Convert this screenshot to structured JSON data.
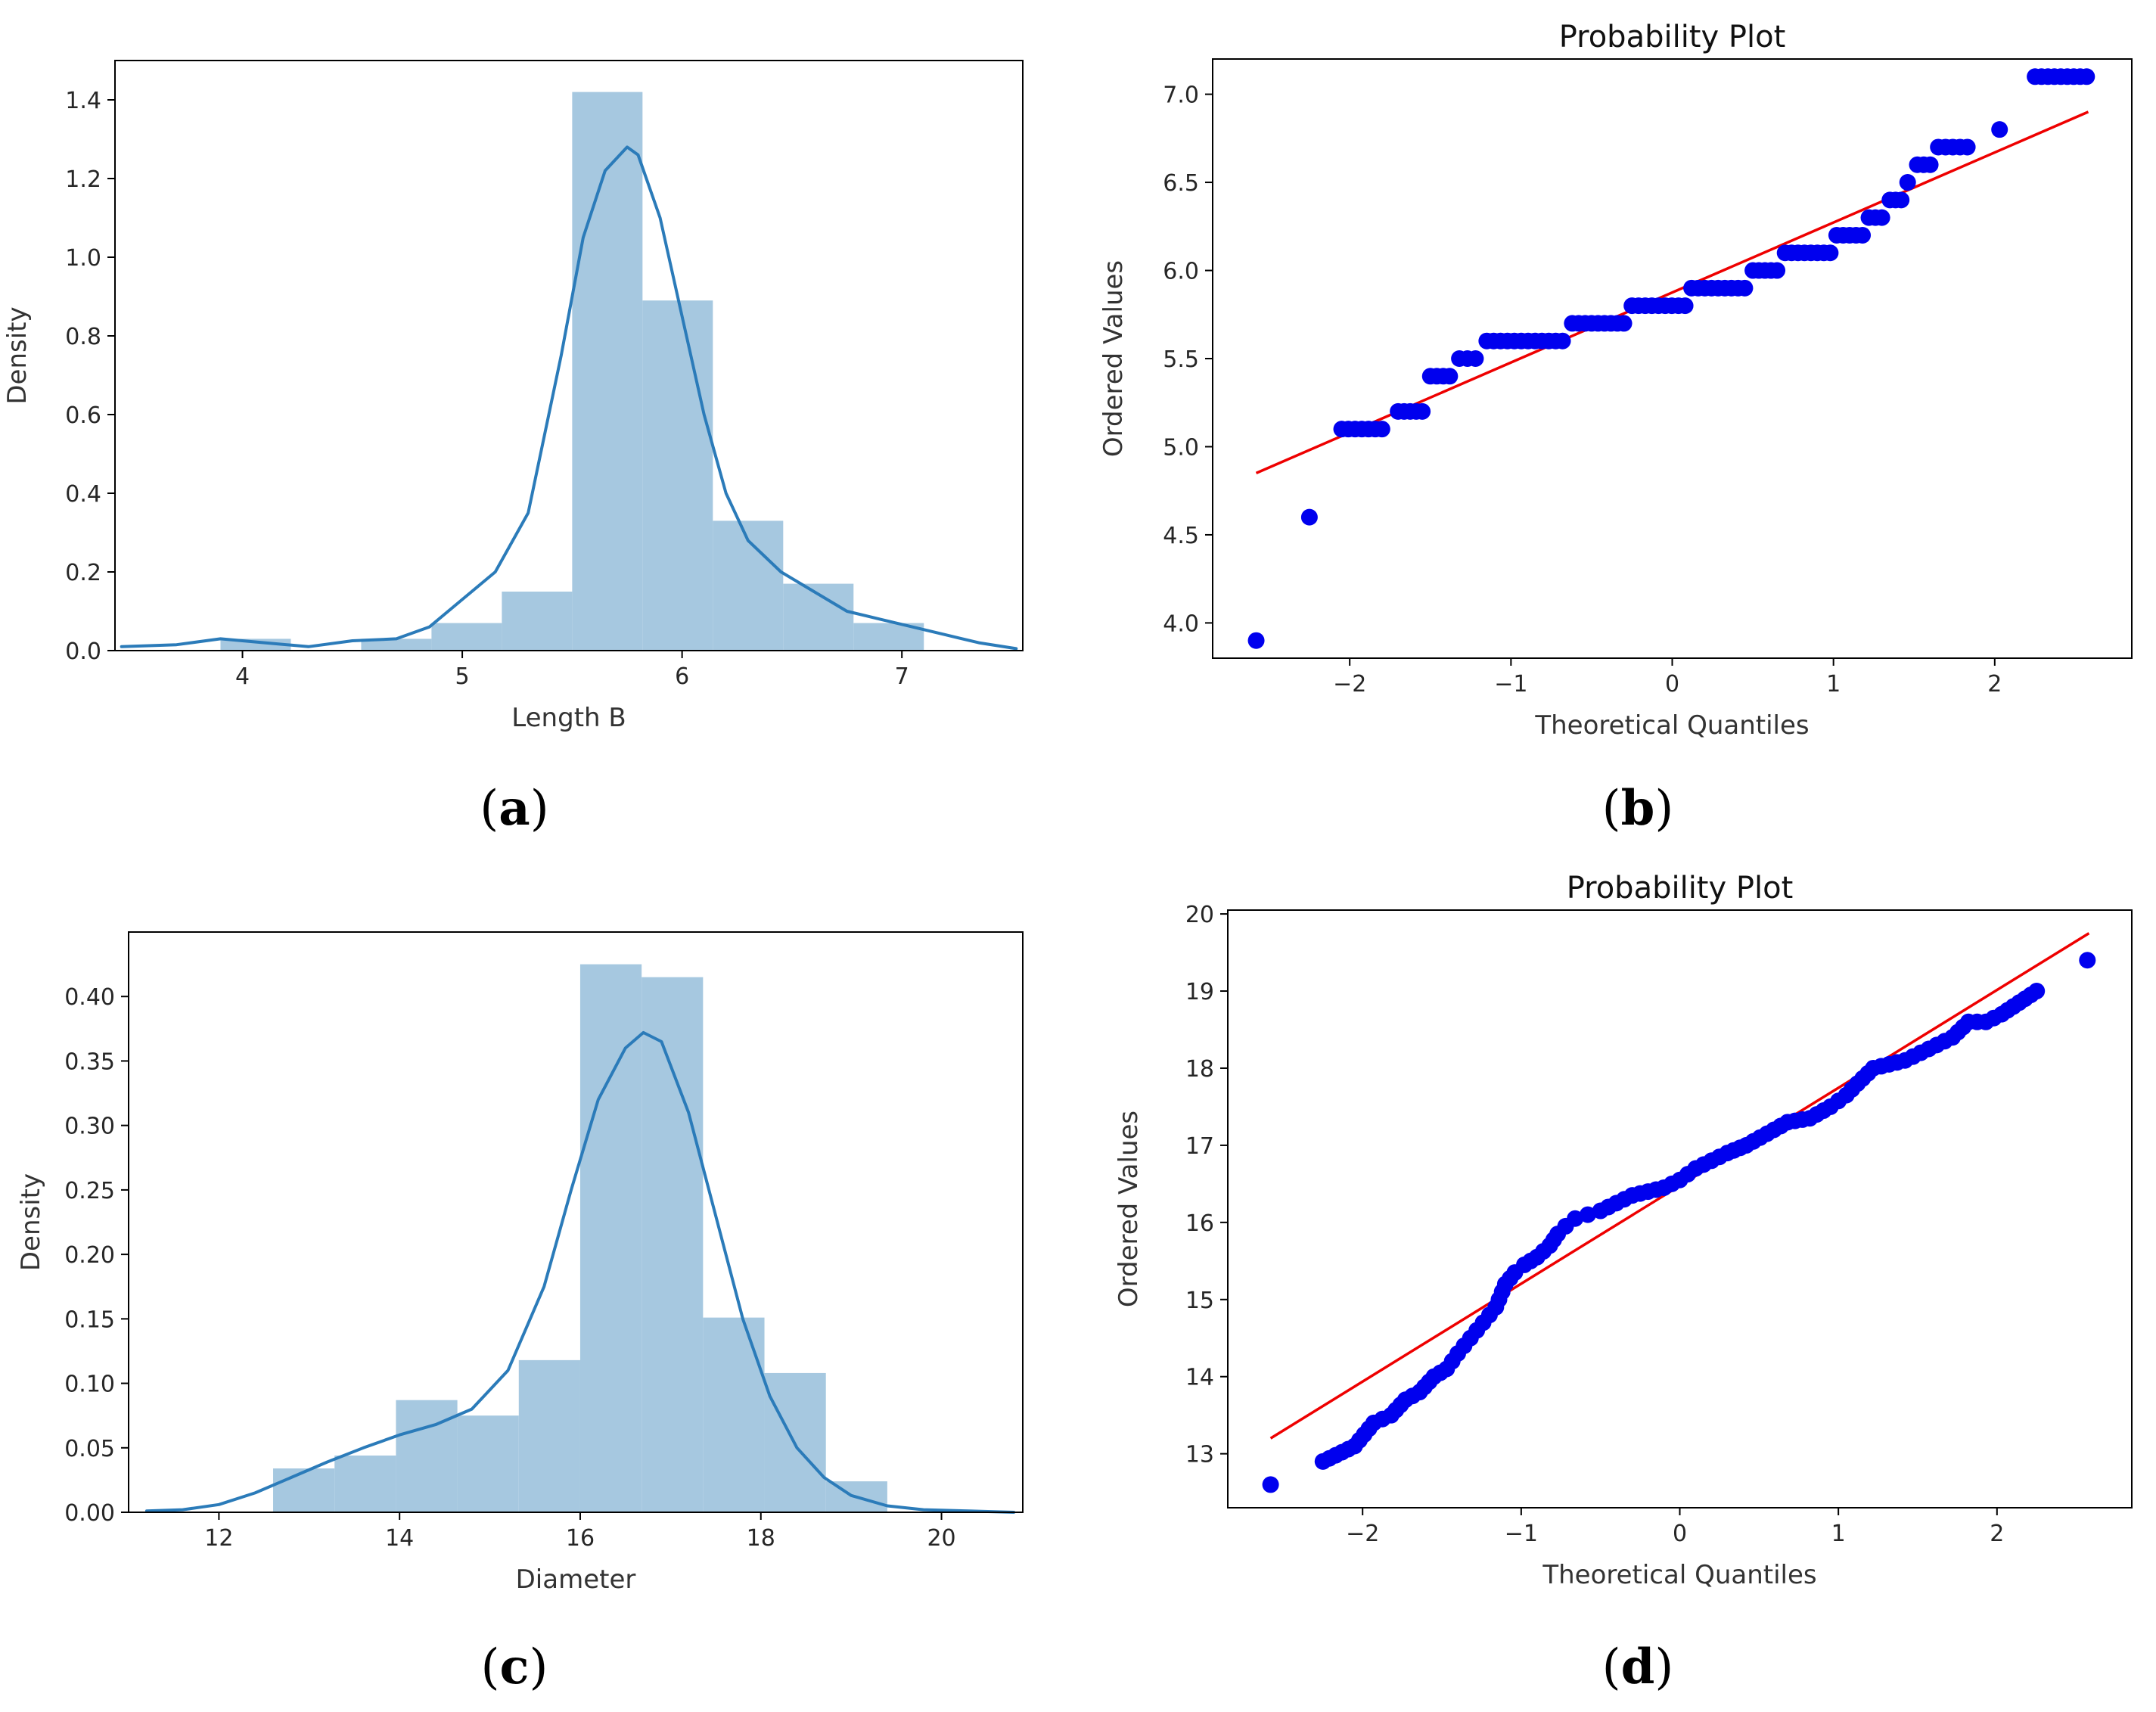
{
  "chart_data": [
    {
      "id": "a",
      "type": "bar",
      "subtype": "histogram_with_kde",
      "caption": "a",
      "xlabel": "Length B",
      "ylabel": "Density",
      "xlim": [
        3.42,
        7.55
      ],
      "ylim": [
        0.0,
        1.5
      ],
      "xticks": [
        4,
        5,
        6,
        7
      ],
      "yticks": [
        0.0,
        0.2,
        0.4,
        0.6,
        0.8,
        1.0,
        1.2,
        1.4
      ],
      "tick_decimals": 1,
      "bar_color": "#a6c8e0",
      "kde_color": "#2b7bb9",
      "bins": [
        {
          "x0": 3.9,
          "x1": 4.22,
          "value": 0.03
        },
        {
          "x0": 4.22,
          "x1": 4.54,
          "value": 0.0
        },
        {
          "x0": 4.54,
          "x1": 4.86,
          "value": 0.03
        },
        {
          "x0": 4.86,
          "x1": 5.18,
          "value": 0.07
        },
        {
          "x0": 5.18,
          "x1": 5.5,
          "value": 0.15
        },
        {
          "x0": 5.5,
          "x1": 5.82,
          "value": 1.42
        },
        {
          "x0": 5.82,
          "x1": 6.14,
          "value": 0.89
        },
        {
          "x0": 6.14,
          "x1": 6.46,
          "value": 0.33
        },
        {
          "x0": 6.46,
          "x1": 6.78,
          "value": 0.17
        },
        {
          "x0": 6.78,
          "x1": 7.1,
          "value": 0.07
        }
      ],
      "kde": {
        "x": [
          3.45,
          3.7,
          3.9,
          4.1,
          4.3,
          4.5,
          4.7,
          4.85,
          5.0,
          5.15,
          5.3,
          5.45,
          5.55,
          5.65,
          5.75,
          5.8,
          5.9,
          6.0,
          6.1,
          6.2,
          6.3,
          6.45,
          6.6,
          6.75,
          6.9,
          7.05,
          7.2,
          7.35,
          7.52
        ],
        "y": [
          0.01,
          0.015,
          0.03,
          0.02,
          0.01,
          0.025,
          0.03,
          0.06,
          0.13,
          0.2,
          0.35,
          0.75,
          1.05,
          1.22,
          1.28,
          1.26,
          1.1,
          0.85,
          0.6,
          0.4,
          0.28,
          0.2,
          0.15,
          0.1,
          0.08,
          0.06,
          0.04,
          0.02,
          0.005
        ]
      }
    },
    {
      "id": "b",
      "type": "scatter",
      "subtype": "probability_plot",
      "caption": "b",
      "title": "Probability Plot",
      "xlabel": "Theoretical Quantiles",
      "ylabel": "Ordered Values",
      "xlim": [
        -2.85,
        2.85
      ],
      "ylim": [
        3.8,
        7.2
      ],
      "xticks": [
        -2,
        -1,
        0,
        1,
        2
      ],
      "yticks": [
        4.0,
        4.5,
        5.0,
        5.5,
        6.0,
        6.5,
        7.0
      ],
      "tick_decimals": 1,
      "point_color": "#0000ee",
      "line_color": "#ee0000",
      "fit_line": {
        "x": [
          -2.58,
          2.58
        ],
        "y": [
          4.85,
          6.9
        ]
      },
      "steps": [
        {
          "y": 3.9,
          "x0": -2.58,
          "x1": -2.58
        },
        {
          "y": 4.6,
          "x0": -2.25,
          "x1": -2.25
        },
        {
          "y": 5.1,
          "x0": -2.05,
          "x1": -1.8
        },
        {
          "y": 5.2,
          "x0": -1.7,
          "x1": -1.55
        },
        {
          "y": 5.4,
          "x0": -1.5,
          "x1": -1.38
        },
        {
          "y": 5.5,
          "x0": -1.32,
          "x1": -1.22
        },
        {
          "y": 5.6,
          "x0": -1.15,
          "x1": -0.68
        },
        {
          "y": 5.7,
          "x0": -0.62,
          "x1": -0.3
        },
        {
          "y": 5.8,
          "x0": -0.25,
          "x1": 0.08
        },
        {
          "y": 5.9,
          "x0": 0.12,
          "x1": 0.45
        },
        {
          "y": 6.0,
          "x0": 0.5,
          "x1": 0.65
        },
        {
          "y": 6.1,
          "x0": 0.7,
          "x1": 0.98
        },
        {
          "y": 6.2,
          "x0": 1.02,
          "x1": 1.18
        },
        {
          "y": 6.3,
          "x0": 1.22,
          "x1": 1.3
        },
        {
          "y": 6.4,
          "x0": 1.35,
          "x1": 1.42
        },
        {
          "y": 6.5,
          "x0": 1.46,
          "x1": 1.46
        },
        {
          "y": 6.6,
          "x0": 1.52,
          "x1": 1.6
        },
        {
          "y": 6.7,
          "x0": 1.65,
          "x1": 1.83
        },
        {
          "y": 6.8,
          "x0": 2.03,
          "x1": 2.03
        },
        {
          "y": 7.1,
          "x0": 2.25,
          "x1": 2.57
        }
      ]
    },
    {
      "id": "c",
      "type": "bar",
      "subtype": "histogram_with_kde",
      "caption": "c",
      "xlabel": "Diameter",
      "ylabel": "Density",
      "xlim": [
        11.0,
        20.9
      ],
      "ylim": [
        0.0,
        0.45
      ],
      "xticks": [
        12,
        14,
        16,
        18,
        20
      ],
      "yticks": [
        0.0,
        0.05,
        0.1,
        0.15,
        0.2,
        0.25,
        0.3,
        0.35,
        0.4
      ],
      "tick_decimals": 2,
      "bar_color": "#a6c8e0",
      "kde_color": "#2b7bb9",
      "bins": [
        {
          "x0": 12.6,
          "x1": 13.28,
          "value": 0.034
        },
        {
          "x0": 13.28,
          "x1": 13.96,
          "value": 0.044
        },
        {
          "x0": 13.96,
          "x1": 14.64,
          "value": 0.087
        },
        {
          "x0": 14.64,
          "x1": 15.32,
          "value": 0.075
        },
        {
          "x0": 15.32,
          "x1": 16.0,
          "value": 0.118
        },
        {
          "x0": 16.0,
          "x1": 16.68,
          "value": 0.425
        },
        {
          "x0": 16.68,
          "x1": 17.36,
          "value": 0.415
        },
        {
          "x0": 17.36,
          "x1": 18.04,
          "value": 0.151
        },
        {
          "x0": 18.04,
          "x1": 18.72,
          "value": 0.108
        },
        {
          "x0": 18.72,
          "x1": 19.4,
          "value": 0.024
        }
      ],
      "kde": {
        "x": [
          11.2,
          11.6,
          12.0,
          12.4,
          12.8,
          13.2,
          13.6,
          14.0,
          14.4,
          14.8,
          15.2,
          15.6,
          15.9,
          16.2,
          16.5,
          16.7,
          16.9,
          17.2,
          17.5,
          17.8,
          18.1,
          18.4,
          18.7,
          19.0,
          19.4,
          19.8,
          20.3,
          20.8
        ],
        "y": [
          0.001,
          0.002,
          0.006,
          0.015,
          0.027,
          0.039,
          0.05,
          0.06,
          0.068,
          0.08,
          0.11,
          0.175,
          0.25,
          0.32,
          0.36,
          0.372,
          0.365,
          0.31,
          0.23,
          0.15,
          0.09,
          0.05,
          0.027,
          0.013,
          0.005,
          0.002,
          0.001,
          0.0
        ]
      }
    },
    {
      "id": "d",
      "type": "scatter",
      "subtype": "probability_plot",
      "caption": "d",
      "title": "Probability Plot",
      "xlabel": "Theoretical Quantiles",
      "ylabel": "Ordered Values",
      "xlim": [
        -2.85,
        2.85
      ],
      "ylim": [
        12.3,
        20.05
      ],
      "xticks": [
        -2,
        -1,
        0,
        1,
        2
      ],
      "yticks": [
        13,
        14,
        15,
        16,
        17,
        18,
        19,
        20
      ],
      "tick_decimals": 0,
      "point_color": "#0000ee",
      "line_color": "#ee0000",
      "fit_line": {
        "x": [
          -2.58,
          2.58
        ],
        "y": [
          13.2,
          19.75
        ]
      },
      "curve": {
        "x": [
          -2.58,
          -2.25,
          -2.05,
          -1.93,
          -1.82,
          -1.73,
          -1.64,
          -1.55,
          -1.47,
          -1.4,
          -1.32,
          -1.24,
          -1.16,
          -1.1,
          -1.04,
          -0.98,
          -0.9,
          -0.82,
          -0.77,
          -0.72,
          -0.66,
          -0.58,
          -0.5,
          -0.4,
          -0.3,
          -0.2,
          -0.1,
          0.0,
          0.1,
          0.2,
          0.3,
          0.42,
          0.55,
          0.68,
          0.82,
          0.95,
          1.05,
          1.12,
          1.22,
          1.32,
          1.42,
          1.52,
          1.62,
          1.72,
          1.82,
          1.93,
          2.03,
          2.25,
          2.57
        ],
        "y": [
          12.6,
          12.9,
          13.1,
          13.4,
          13.5,
          13.7,
          13.8,
          14.0,
          14.1,
          14.3,
          14.5,
          14.7,
          14.9,
          15.2,
          15.35,
          15.45,
          15.55,
          15.7,
          15.85,
          15.95,
          16.05,
          16.1,
          16.15,
          16.25,
          16.35,
          16.4,
          16.45,
          16.55,
          16.7,
          16.8,
          16.9,
          17.0,
          17.15,
          17.3,
          17.35,
          17.5,
          17.65,
          17.8,
          18.0,
          18.05,
          18.1,
          18.2,
          18.3,
          18.4,
          18.6,
          18.6,
          18.7,
          19.0,
          19.4
        ]
      }
    }
  ]
}
